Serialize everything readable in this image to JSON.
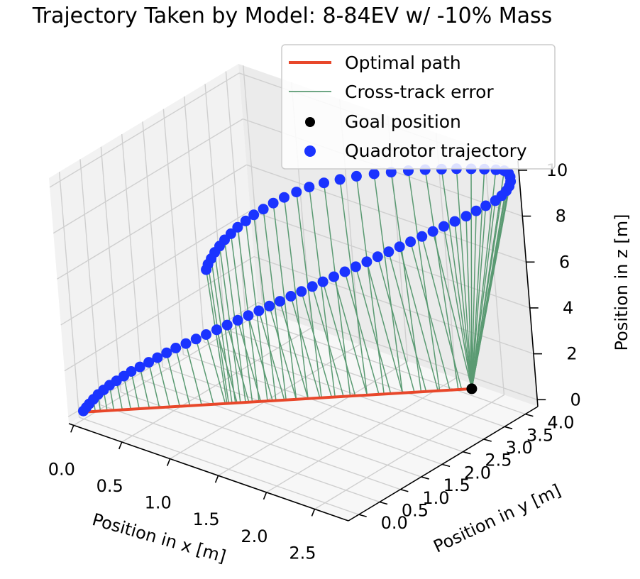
{
  "chart_data": {
    "type": "scatter",
    "title": "Trajectory Taken by Model: 8-84EV w/ -10% Mass",
    "xlabel": "Position in x [m]",
    "ylabel": "Position in y [m]",
    "zlabel": "Position in z [m]",
    "x_ticks": [
      "0.0",
      "0.5",
      "1.0",
      "1.5",
      "2.0",
      "2.5"
    ],
    "y_ticks": [
      "0.0",
      "0.5",
      "1.0",
      "1.5",
      "2.0",
      "2.5",
      "3.0",
      "3.5",
      "4.0"
    ],
    "z_ticks": [
      "0",
      "2",
      "4",
      "6",
      "8",
      "10"
    ],
    "grid": true,
    "legend_position": "top-right",
    "legend": [
      {
        "label": "Optimal path",
        "kind": "line",
        "color": "#e8472a"
      },
      {
        "label": "Cross-track error",
        "kind": "thin-line",
        "color": "#5a9a72"
      },
      {
        "label": "Goal position",
        "kind": "dot",
        "color": "#000000"
      },
      {
        "label": "Quadrotor trajectory",
        "kind": "dot",
        "color": "#1a33ff"
      }
    ],
    "colors": {
      "trajectory": "#1a33ff",
      "optimal_path": "#e8472a",
      "cross_track": "#5a9a72",
      "goal": "#000000"
    },
    "goal_position": {
      "x": 2.3,
      "y": 4.0,
      "z": 0.0
    },
    "start_position": {
      "x": 0.0,
      "y": 0.0,
      "z": 0.0
    },
    "series": [
      {
        "name": "Quadrotor trajectory",
        "points": [
          {
            "x": 0.0,
            "y": 0.0,
            "z": 0.05
          },
          {
            "x": 0.02,
            "y": 0.03,
            "z": 0.2
          },
          {
            "x": 0.04,
            "y": 0.06,
            "z": 0.35
          },
          {
            "x": 0.07,
            "y": 0.1,
            "z": 0.55
          },
          {
            "x": 0.1,
            "y": 0.15,
            "z": 0.75
          },
          {
            "x": 0.14,
            "y": 0.2,
            "z": 0.95
          },
          {
            "x": 0.18,
            "y": 0.26,
            "z": 1.15
          },
          {
            "x": 0.23,
            "y": 0.32,
            "z": 1.35
          },
          {
            "x": 0.28,
            "y": 0.39,
            "z": 1.55
          },
          {
            "x": 0.33,
            "y": 0.46,
            "z": 1.75
          },
          {
            "x": 0.39,
            "y": 0.54,
            "z": 1.95
          },
          {
            "x": 0.45,
            "y": 0.62,
            "z": 2.15
          },
          {
            "x": 0.51,
            "y": 0.7,
            "z": 2.35
          },
          {
            "x": 0.57,
            "y": 0.79,
            "z": 2.55
          },
          {
            "x": 0.63,
            "y": 0.88,
            "z": 2.75
          },
          {
            "x": 0.7,
            "y": 0.97,
            "z": 2.95
          },
          {
            "x": 0.77,
            "y": 1.06,
            "z": 3.15
          },
          {
            "x": 0.84,
            "y": 1.15,
            "z": 3.35
          },
          {
            "x": 0.91,
            "y": 1.25,
            "z": 3.55
          },
          {
            "x": 0.98,
            "y": 1.35,
            "z": 3.75
          },
          {
            "x": 1.05,
            "y": 1.45,
            "z": 3.95
          },
          {
            "x": 1.12,
            "y": 1.55,
            "z": 4.15
          },
          {
            "x": 1.19,
            "y": 1.65,
            "z": 4.35
          },
          {
            "x": 1.26,
            "y": 1.75,
            "z": 4.55
          },
          {
            "x": 1.33,
            "y": 1.85,
            "z": 4.75
          },
          {
            "x": 1.4,
            "y": 1.96,
            "z": 4.95
          },
          {
            "x": 1.47,
            "y": 2.06,
            "z": 5.15
          },
          {
            "x": 1.54,
            "y": 2.17,
            "z": 5.35
          },
          {
            "x": 1.61,
            "y": 2.27,
            "z": 5.55
          },
          {
            "x": 1.68,
            "y": 2.38,
            "z": 5.75
          },
          {
            "x": 1.75,
            "y": 2.49,
            "z": 5.95
          },
          {
            "x": 1.82,
            "y": 2.6,
            "z": 6.15
          },
          {
            "x": 1.89,
            "y": 2.71,
            "z": 6.35
          },
          {
            "x": 1.96,
            "y": 2.82,
            "z": 6.55
          },
          {
            "x": 2.03,
            "y": 2.93,
            "z": 6.75
          },
          {
            "x": 2.1,
            "y": 3.04,
            "z": 6.95
          },
          {
            "x": 2.17,
            "y": 3.15,
            "z": 7.15
          },
          {
            "x": 2.24,
            "y": 3.27,
            "z": 7.35
          },
          {
            "x": 2.31,
            "y": 3.38,
            "z": 7.55
          },
          {
            "x": 2.38,
            "y": 3.49,
            "z": 7.75
          },
          {
            "x": 2.45,
            "y": 3.6,
            "z": 7.95
          },
          {
            "x": 2.52,
            "y": 3.72,
            "z": 8.15
          },
          {
            "x": 2.58,
            "y": 3.83,
            "z": 8.35
          },
          {
            "x": 2.64,
            "y": 3.93,
            "z": 8.55
          },
          {
            "x": 2.7,
            "y": 4.03,
            "z": 8.75
          },
          {
            "x": 2.74,
            "y": 4.1,
            "z": 8.95
          },
          {
            "x": 2.77,
            "y": 4.15,
            "z": 9.15
          },
          {
            "x": 2.79,
            "y": 4.18,
            "z": 9.35
          },
          {
            "x": 2.8,
            "y": 4.2,
            "z": 9.55
          },
          {
            "x": 2.8,
            "y": 4.2,
            "z": 9.75
          },
          {
            "x": 2.79,
            "y": 4.19,
            "z": 9.9
          },
          {
            "x": 2.76,
            "y": 4.16,
            "z": 10.0
          },
          {
            "x": 2.7,
            "y": 4.1,
            "z": 10.02
          },
          {
            "x": 2.62,
            "y": 4.01,
            "z": 10.03
          },
          {
            "x": 2.53,
            "y": 3.9,
            "z": 10.03
          },
          {
            "x": 2.43,
            "y": 3.78,
            "z": 10.02
          },
          {
            "x": 2.33,
            "y": 3.65,
            "z": 10.0
          },
          {
            "x": 2.22,
            "y": 3.51,
            "z": 9.97
          },
          {
            "x": 2.11,
            "y": 3.36,
            "z": 9.93
          },
          {
            "x": 2.0,
            "y": 3.2,
            "z": 9.88
          },
          {
            "x": 1.89,
            "y": 3.04,
            "z": 9.82
          },
          {
            "x": 1.78,
            "y": 2.87,
            "z": 9.74
          },
          {
            "x": 1.68,
            "y": 2.7,
            "z": 9.64
          },
          {
            "x": 1.58,
            "y": 2.54,
            "z": 9.52
          },
          {
            "x": 1.49,
            "y": 2.39,
            "z": 9.37
          },
          {
            "x": 1.41,
            "y": 2.26,
            "z": 9.18
          },
          {
            "x": 1.33,
            "y": 2.14,
            "z": 8.96
          },
          {
            "x": 1.26,
            "y": 2.03,
            "z": 8.73
          },
          {
            "x": 1.2,
            "y": 1.92,
            "z": 8.5
          },
          {
            "x": 1.14,
            "y": 1.82,
            "z": 8.27
          },
          {
            "x": 1.09,
            "y": 1.73,
            "z": 8.03
          },
          {
            "x": 1.04,
            "y": 1.64,
            "z": 7.78
          },
          {
            "x": 1.0,
            "y": 1.56,
            "z": 7.53
          },
          {
            "x": 0.96,
            "y": 1.49,
            "z": 7.28
          },
          {
            "x": 0.93,
            "y": 1.43,
            "z": 7.03
          },
          {
            "x": 0.9,
            "y": 1.37,
            "z": 6.78
          },
          {
            "x": 0.88,
            "y": 1.32,
            "z": 6.53
          },
          {
            "x": 0.86,
            "y": 1.28,
            "z": 6.3
          },
          {
            "x": 0.85,
            "y": 1.25,
            "z": 6.08
          }
        ]
      }
    ]
  }
}
